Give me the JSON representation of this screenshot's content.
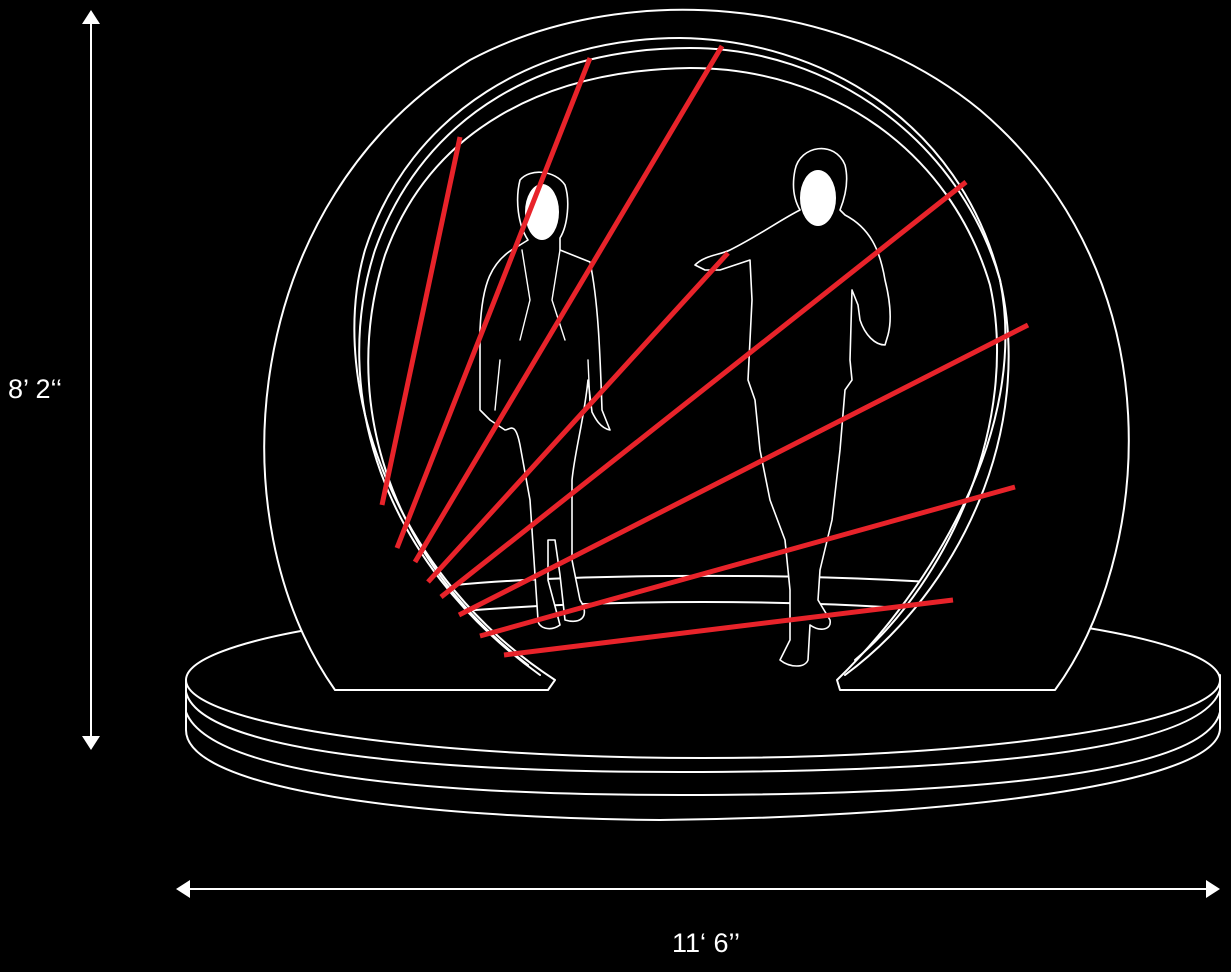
{
  "dimensions": {
    "height_label": "8’ 2‘‘",
    "width_label": "11‘ 6’’"
  },
  "colors": {
    "background": "#000000",
    "line": "#ffffff",
    "laser": "#e8232a"
  }
}
